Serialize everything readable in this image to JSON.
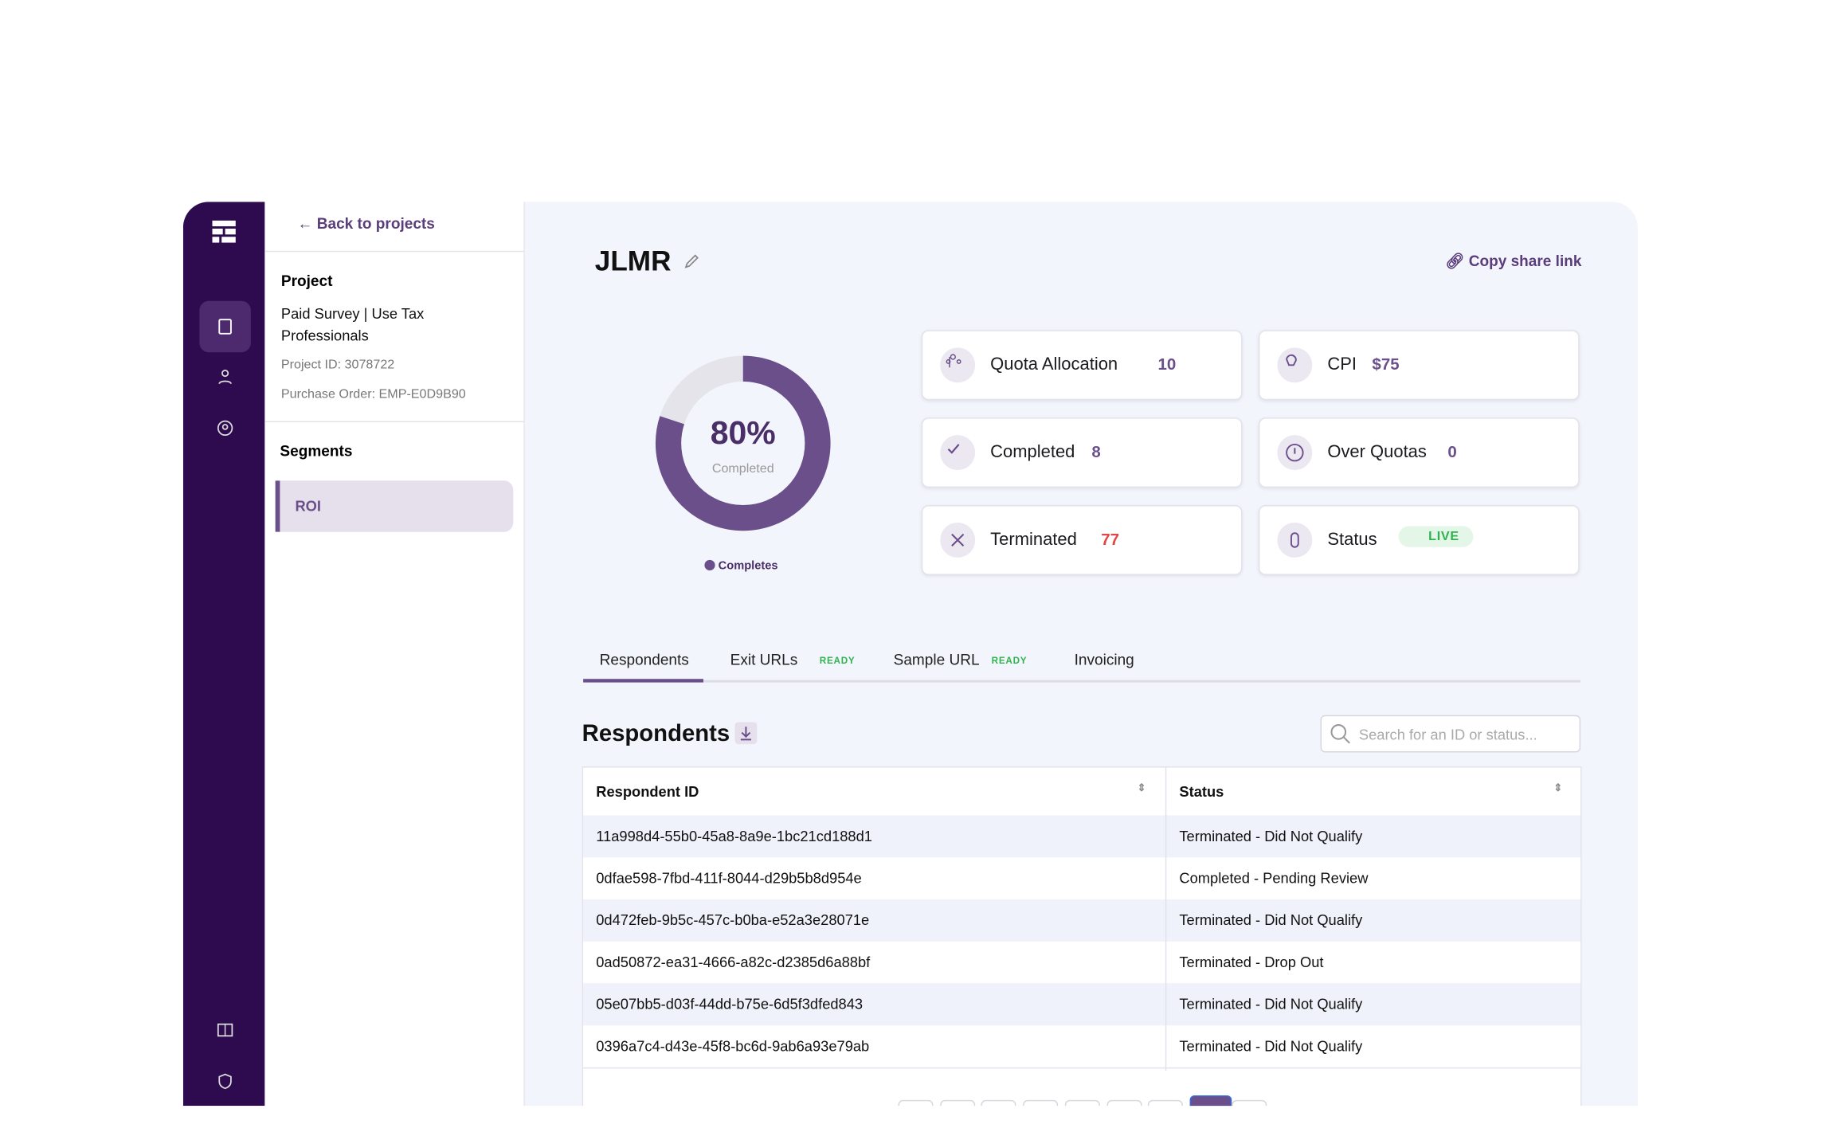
{
  "nav": {
    "back": "Back to projects"
  },
  "project": {
    "heading": "Project",
    "name": "Paid Survey | Use Tax Professionals",
    "id": "Project ID: 3078722",
    "purchase_order": "Purchase Order: EMP-E0D9B90"
  },
  "segments": {
    "heading": "Segments",
    "items": [
      "ROI"
    ]
  },
  "header": {
    "title": "JLMR",
    "share": "Copy share link"
  },
  "donut": {
    "value": 80,
    "label": "80%",
    "caption": "Completed",
    "legend": "Completes"
  },
  "cards": [
    {
      "label": "Quota Allocation",
      "value": "10"
    },
    {
      "label": "CPI",
      "value": "$75"
    },
    {
      "label": "Completed",
      "value": "8"
    },
    {
      "label": "Over Quotas",
      "value": "0"
    },
    {
      "label": "Terminated",
      "value": "77"
    },
    {
      "label": "Status",
      "value": "LIVE"
    }
  ],
  "tabs": [
    {
      "label": "Respondents"
    },
    {
      "label": "Exit URLs",
      "badge": "READY"
    },
    {
      "label": "Sample URL",
      "badge": "READY"
    },
    {
      "label": "Invoicing"
    }
  ],
  "respondents": {
    "title": "Respondents",
    "search_placeholder": "Search for an ID or status...",
    "columns": [
      "Respondent ID",
      "Status"
    ],
    "rows": [
      [
        "11a998d4-55b0-45a8-8a9e-1bc21cd188d1",
        "Terminated - Did Not Qualify"
      ],
      [
        "0dfae598-7fbd-411f-8044-d29b5b8d954e",
        "Completed - Pending Review"
      ],
      [
        "0d472feb-9b5c-457c-b0ba-e52a3e28071e",
        "Terminated - Did Not Qualify"
      ],
      [
        "0ad50872-ea31-4666-a82c-d2385d6a88bf",
        "Terminated - Drop Out"
      ],
      [
        "05e07bb5-d03f-44dd-b75e-6d5f3dfed843",
        "Terminated - Did Not Qualify"
      ],
      [
        "0396a7c4-d43e-45f8-bc6d-9ab6a93e79ab",
        "Terminated - Did Not Qualify"
      ]
    ]
  }
}
